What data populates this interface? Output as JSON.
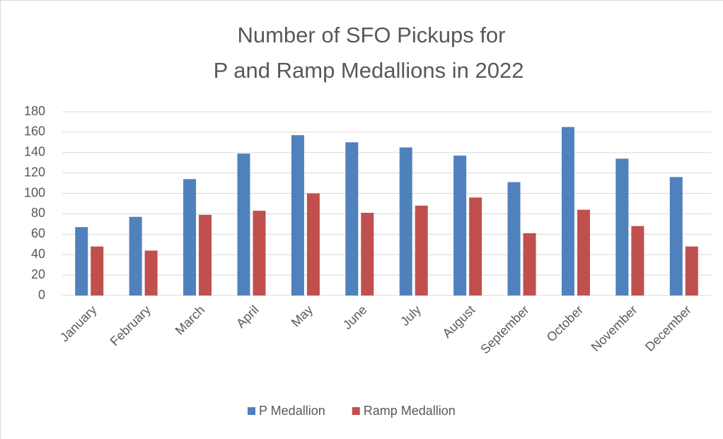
{
  "chart_data": {
    "type": "bar",
    "title": [
      "Number of SFO Pickups for",
      "P and Ramp Medallions in 2022"
    ],
    "categories": [
      "January",
      "February",
      "March",
      "April",
      "May",
      "June",
      "July",
      "August",
      "September",
      "October",
      "November",
      "December"
    ],
    "series": [
      {
        "name": "P Medallion",
        "color": "#4f81bd",
        "values": [
          67,
          77,
          114,
          139,
          157,
          150,
          145,
          137,
          111,
          165,
          134,
          116
        ]
      },
      {
        "name": "Ramp Medallion",
        "color": "#c0504d",
        "values": [
          48,
          44,
          79,
          83,
          100,
          81,
          88,
          96,
          61,
          84,
          68,
          48
        ]
      }
    ],
    "ylim": [
      0,
      180
    ],
    "yticks": [
      0,
      20,
      40,
      60,
      80,
      100,
      120,
      140,
      160,
      180
    ],
    "grid": true,
    "legend": "bottom"
  }
}
